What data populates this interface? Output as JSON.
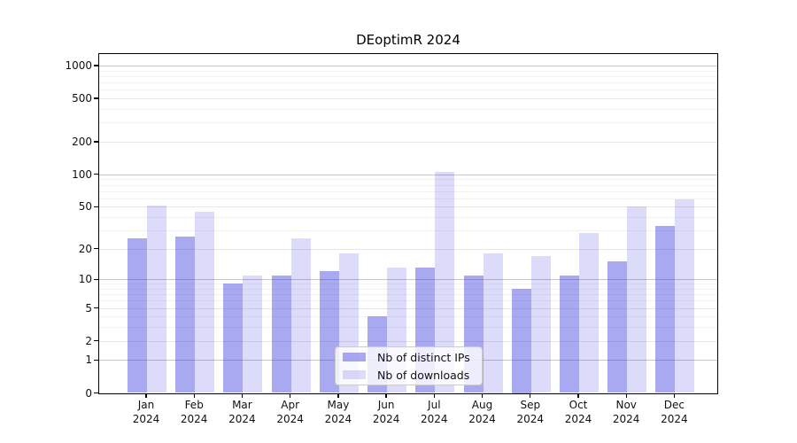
{
  "chart_data": {
    "type": "bar",
    "title": "DEoptimR 2024",
    "categories": [
      "Jan",
      "Feb",
      "Mar",
      "Apr",
      "May",
      "Jun",
      "Jul",
      "Aug",
      "Sep",
      "Oct",
      "Nov",
      "Dec"
    ],
    "year_label": "2024",
    "series": [
      {
        "name": "Nb of distinct IPs",
        "color": "#a9a9f2",
        "rgba": "rgba(50,50,224,0.42)",
        "values": [
          25,
          26,
          9,
          11,
          12,
          4,
          13,
          11,
          8,
          11,
          15,
          33
        ]
      },
      {
        "name": "Nb of downloads",
        "color": "#dcdcf8",
        "rgba": "rgba(50,50,224,0.17)",
        "values": [
          51,
          45,
          11,
          25,
          18,
          13,
          105,
          18,
          17,
          28,
          50,
          58
        ]
      }
    ],
    "yscale": "log1p",
    "yticks": [
      0,
      1,
      2,
      5,
      10,
      20,
      50,
      100,
      200,
      500,
      1000
    ],
    "minor_ticks": [
      3,
      4,
      6,
      7,
      8,
      9,
      30,
      40,
      60,
      70,
      80,
      90,
      300,
      400,
      600,
      700,
      800,
      900
    ],
    "ylim": [
      0,
      1280
    ],
    "grid": "horizontal",
    "legend_position": "lower-center"
  }
}
